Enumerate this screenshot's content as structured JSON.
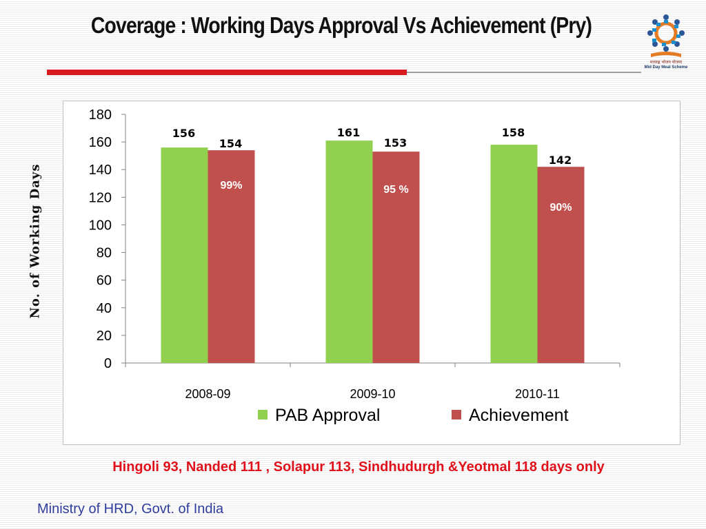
{
  "slide": {
    "title": "Coverage : Working Days Approval Vs Achievement (Pry)",
    "note": "Hingoli 93, Nanded 111 , Solapur 113, Sindhudurgh &Yeotmal 118 days  only",
    "footer": "Ministry of HRD, Govt. of India",
    "logo": {
      "icon": "mid-day-meal-logo-icon",
      "text_hi": "मध्याह्न भोजन योजना",
      "text_en": "Mid Day Meal Scheme"
    },
    "colors": {
      "title_rule": "#d71920",
      "note": "#e0101a",
      "footer": "#2d3c9a"
    }
  },
  "chart_data": {
    "type": "bar",
    "title": "",
    "xlabel": "",
    "ylabel": "No. of Working Days",
    "ylim": [
      0,
      180
    ],
    "yticks": [
      0,
      20,
      40,
      60,
      80,
      100,
      120,
      140,
      160,
      180
    ],
    "categories": [
      "2008-09",
      "2009-10",
      "2010-11"
    ],
    "series": [
      {
        "name": "PAB Approval",
        "color": "#92d050",
        "values": [
          156,
          161,
          158
        ]
      },
      {
        "name": "Achievement",
        "color": "#c0504d",
        "values": [
          154,
          153,
          142
        ]
      }
    ],
    "annotations": [
      "99%",
      "95 %",
      "90%"
    ],
    "legend": "bottom",
    "grid": false
  }
}
